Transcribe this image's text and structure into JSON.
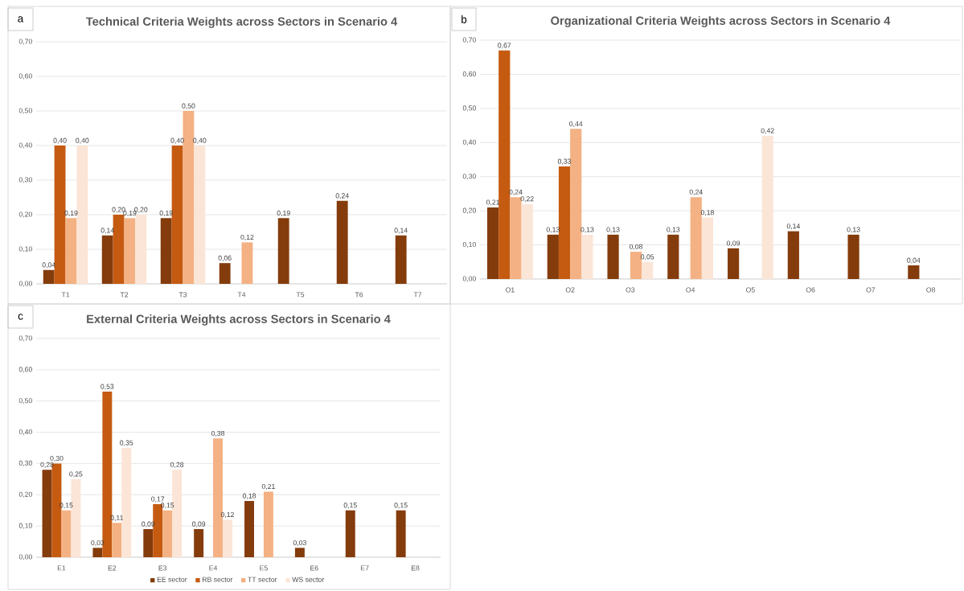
{
  "chart_data": [
    {
      "type": "bar",
      "title": "Technical Criteria Weights across Sectors in Scenario 4",
      "annotations": [
        "a"
      ],
      "categories": [
        "T1",
        "T2",
        "T3",
        "T4",
        "T5",
        "T6",
        "T7"
      ],
      "ylim": [
        0,
        0.7
      ],
      "yticks": [
        {
          "value": 0,
          "label": "0,00"
        },
        {
          "value": 0.1,
          "label": "0,10"
        },
        {
          "value": 0.2,
          "label": "0,20"
        },
        {
          "value": 0.3,
          "label": "0,30"
        },
        {
          "value": 0.4,
          "label": "0,40"
        },
        {
          "value": 0.5,
          "label": "0,50"
        },
        {
          "value": 0.6,
          "label": "0,60"
        },
        {
          "value": 0.7,
          "label": "0,70"
        }
      ],
      "grid": "y",
      "legend": false,
      "series": [
        {
          "color": "#843c0c",
          "values": [
            0.04,
            0.14,
            0.19,
            0.06,
            0.19,
            0.24,
            0.14
          ],
          "value_labels": [
            "0,04",
            "0,14",
            "0,19",
            "0,06",
            "0,19",
            "0,24",
            "0,14"
          ]
        },
        {
          "color": "#c55a11",
          "values": [
            0.4,
            0.2,
            0.4,
            null,
            null,
            null,
            null
          ],
          "value_labels": [
            "0,40",
            "0,20",
            "0,40",
            null,
            null,
            null,
            null
          ]
        },
        {
          "color": "#f4b183",
          "values": [
            0.19,
            0.19,
            0.5,
            0.12,
            null,
            null,
            null
          ],
          "value_labels": [
            "0,19",
            "0,19",
            "0,50",
            "0,12",
            null,
            null,
            null
          ]
        },
        {
          "color": "#fbe5d6",
          "values": [
            0.4,
            0.2,
            0.4,
            null,
            null,
            null,
            null
          ],
          "value_labels": [
            "0,40",
            "0,20",
            "0,40",
            null,
            null,
            null,
            null
          ]
        }
      ]
    },
    {
      "type": "bar",
      "title": "Organizational Criteria Weights across Sectors in Scenario 4",
      "annotations": [
        "b"
      ],
      "categories": [
        "O1",
        "O2",
        "O3",
        "O4",
        "O5",
        "O6",
        "O7",
        "O8"
      ],
      "ylim": [
        0,
        0.7
      ],
      "yticks": [
        {
          "value": 0,
          "label": "0,00"
        },
        {
          "value": 0.1,
          "label": "0,10"
        },
        {
          "value": 0.2,
          "label": "0,20"
        },
        {
          "value": 0.3,
          "label": "0,30"
        },
        {
          "value": 0.4,
          "label": "0,40"
        },
        {
          "value": 0.5,
          "label": "0,50"
        },
        {
          "value": 0.6,
          "label": "0,60"
        },
        {
          "value": 0.7,
          "label": "0,70"
        }
      ],
      "grid": "y",
      "legend": false,
      "series": [
        {
          "color": "#843c0c",
          "values": [
            0.21,
            0.13,
            0.13,
            0.13,
            0.09,
            0.14,
            0.13,
            0.04
          ],
          "value_labels": [
            "0,21",
            "0,13",
            "0,13",
            "0,13",
            "0,09",
            "0,14",
            "0,13",
            "0,04"
          ]
        },
        {
          "color": "#c55a11",
          "values": [
            0.67,
            0.33,
            null,
            null,
            null,
            null,
            null,
            null
          ],
          "value_labels": [
            "0,67",
            "0,33",
            null,
            null,
            null,
            null,
            null,
            null
          ]
        },
        {
          "color": "#f4b183",
          "values": [
            0.24,
            0.44,
            0.08,
            0.24,
            null,
            null,
            null,
            null
          ],
          "value_labels": [
            "0,24",
            "0,44",
            "0,08",
            "0,24",
            null,
            null,
            null,
            null
          ]
        },
        {
          "color": "#fbe5d6",
          "values": [
            0.22,
            0.13,
            0.05,
            0.18,
            0.42,
            null,
            null,
            null
          ],
          "value_labels": [
            "0,22",
            "0,13",
            "0,05",
            "0,18",
            "0,42",
            null,
            null,
            null
          ]
        }
      ]
    },
    {
      "type": "bar",
      "title": "External Criteria Weights across Sectors in Scenario 4",
      "annotations": [
        "c"
      ],
      "categories": [
        "E1",
        "E2",
        "E3",
        "E4",
        "E5",
        "E6",
        "E7",
        "E8"
      ],
      "ylim": [
        0,
        0.7
      ],
      "yticks": [
        {
          "value": 0,
          "label": "0,00"
        },
        {
          "value": 0.1,
          "label": "0,10"
        },
        {
          "value": 0.2,
          "label": "0,20"
        },
        {
          "value": 0.3,
          "label": "0,30"
        },
        {
          "value": 0.4,
          "label": "0,40"
        },
        {
          "value": 0.5,
          "label": "0,50"
        },
        {
          "value": 0.6,
          "label": "0,60"
        },
        {
          "value": 0.7,
          "label": "0,70"
        }
      ],
      "grid": "y",
      "legend": "bottom",
      "series": [
        {
          "name": "EE sector",
          "color": "#843c0c",
          "values": [
            0.28,
            0.03,
            0.09,
            0.09,
            0.18,
            0.03,
            0.15,
            0.15
          ],
          "value_labels": [
            "0,28",
            "0,03",
            "0,09",
            "0,09",
            "0,18",
            "0,03",
            "0,15",
            "0,15"
          ]
        },
        {
          "name": "RB sector",
          "color": "#c55a11",
          "values": [
            0.3,
            0.53,
            0.17,
            null,
            null,
            null,
            null,
            null
          ],
          "value_labels": [
            "0,30",
            "0,53",
            "0,17",
            null,
            null,
            null,
            null,
            null
          ]
        },
        {
          "name": "TT sector",
          "color": "#f4b183",
          "values": [
            0.15,
            0.11,
            0.15,
            0.38,
            0.21,
            null,
            null,
            null
          ],
          "value_labels": [
            "0,15",
            "0,11",
            "0,15",
            "0,38",
            "0,21",
            null,
            null,
            null
          ]
        },
        {
          "name": "WS sector",
          "color": "#fbe5d6",
          "values": [
            0.25,
            0.35,
            0.28,
            0.12,
            null,
            null,
            null,
            null
          ],
          "value_labels": [
            "0,25",
            "0,35",
            "0,28",
            "0,12",
            null,
            null,
            null,
            null
          ]
        }
      ]
    }
  ]
}
